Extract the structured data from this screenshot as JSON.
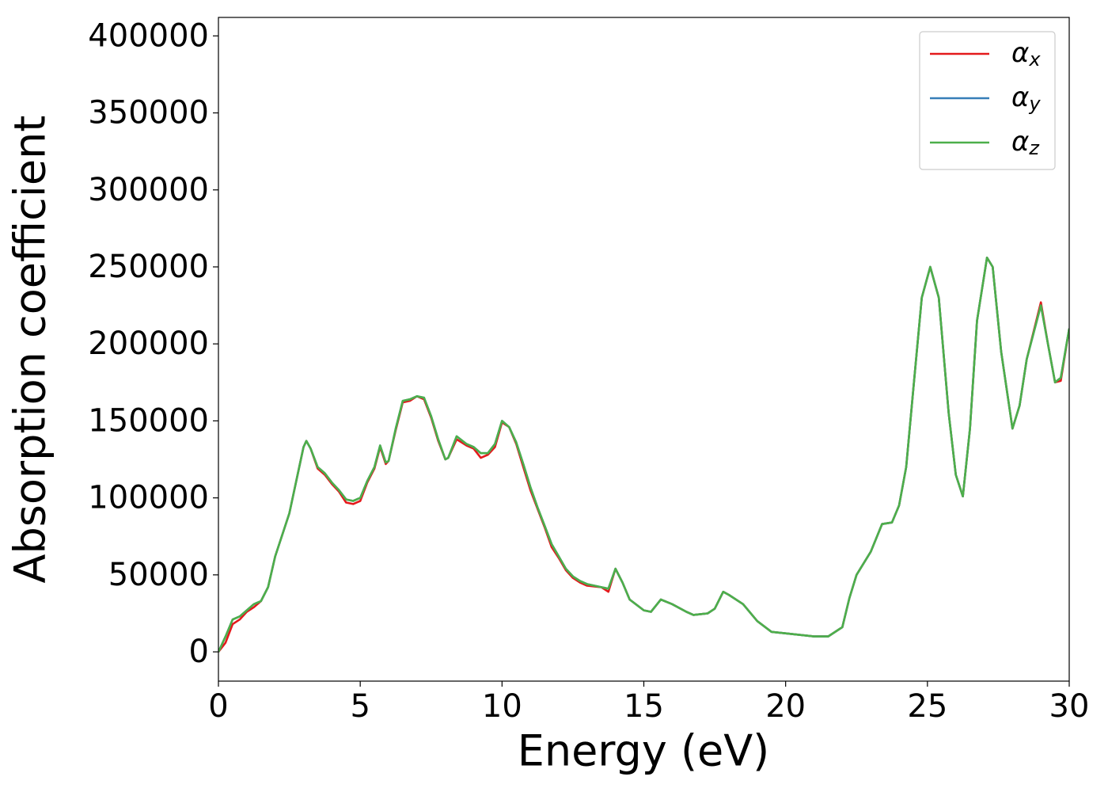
{
  "chart_data": {
    "type": "line",
    "xlabel": "Energy (eV)",
    "ylabel": "Absorption coefficient",
    "x": [
      0,
      0.25,
      0.5,
      0.75,
      1.0,
      1.25,
      1.5,
      1.75,
      2.0,
      2.5,
      3.0,
      3.1,
      3.25,
      3.5,
      3.75,
      4.0,
      4.25,
      4.5,
      4.75,
      5.0,
      5.25,
      5.5,
      5.7,
      5.9,
      6.0,
      6.25,
      6.5,
      6.75,
      7.0,
      7.25,
      7.5,
      7.75,
      8.0,
      8.1,
      8.4,
      8.75,
      9.0,
      9.25,
      9.5,
      9.75,
      10.0,
      10.25,
      10.5,
      10.75,
      11.0,
      11.25,
      11.5,
      11.75,
      12.0,
      12.25,
      12.5,
      12.75,
      13.0,
      13.5,
      13.75,
      14.0,
      14.25,
      14.5,
      15.0,
      15.25,
      15.6,
      16.0,
      16.5,
      16.75,
      17.25,
      17.5,
      17.8,
      18.0,
      18.5,
      19.0,
      19.5,
      20.0,
      21.0,
      21.5,
      22.0,
      22.25,
      22.5,
      23.0,
      23.4,
      23.75,
      24.0,
      24.25,
      24.5,
      24.8,
      25.1,
      25.4,
      25.75,
      26.0,
      26.25,
      26.5,
      26.75,
      27.1,
      27.3,
      27.6,
      28.0,
      28.25,
      28.5,
      29.0,
      29.25,
      29.5,
      29.7,
      30.0
    ],
    "series": [
      {
        "name": "αx",
        "color": "#e41a1c",
        "values": [
          0,
          6000,
          18000,
          21000,
          26000,
          29000,
          33000,
          42000,
          62000,
          90000,
          133000,
          137000,
          132000,
          119000,
          115000,
          109000,
          104000,
          97000,
          96000,
          98000,
          110000,
          119000,
          133000,
          122000,
          124000,
          144000,
          162000,
          163000,
          166000,
          164000,
          152000,
          137000,
          125000,
          126000,
          138000,
          134000,
          132000,
          126000,
          128000,
          133000,
          149000,
          146000,
          135000,
          120000,
          105000,
          93000,
          81000,
          68000,
          61000,
          53000,
          48000,
          45000,
          43000,
          42000,
          39000,
          54000,
          45000,
          34000,
          27000,
          26000,
          34000,
          31000,
          26000,
          24000,
          25000,
          28000,
          39000,
          37000,
          31000,
          20000,
          13000,
          12000,
          10000,
          10000,
          16000,
          35000,
          50000,
          65000,
          83000,
          84000,
          95000,
          120000,
          170000,
          230000,
          250000,
          230000,
          155000,
          115000,
          101000,
          145000,
          215000,
          256000,
          250000,
          195000,
          145000,
          160000,
          190000,
          227000,
          200000,
          175000,
          176000,
          210000
        ]
      },
      {
        "name": "αy",
        "color": "#377eb8",
        "values": [
          0,
          10000,
          21000,
          23000,
          27000,
          31000,
          33000,
          42000,
          62000,
          90000,
          133000,
          137000,
          132000,
          120000,
          116000,
          110000,
          105000,
          99000,
          98000,
          100000,
          111000,
          120000,
          134000,
          123000,
          124000,
          145000,
          163000,
          164000,
          166000,
          165000,
          153000,
          138000,
          125000,
          126000,
          140000,
          135000,
          133000,
          129000,
          129000,
          135000,
          150000,
          146000,
          136000,
          122000,
          107000,
          94000,
          82000,
          70000,
          62000,
          54000,
          49000,
          46000,
          44000,
          42000,
          41000,
          54000,
          45000,
          34000,
          27000,
          26000,
          34000,
          31000,
          26000,
          24000,
          25000,
          28000,
          39000,
          37000,
          31000,
          20000,
          13000,
          12000,
          10000,
          10000,
          16000,
          35000,
          50000,
          65000,
          83000,
          84000,
          95000,
          120000,
          170000,
          230000,
          250000,
          230000,
          155000,
          115000,
          101000,
          145000,
          215000,
          256000,
          250000,
          195000,
          145000,
          160000,
          190000,
          225000,
          200000,
          175000,
          178000,
          210000
        ]
      },
      {
        "name": "αz",
        "color": "#4daf4a",
        "values": [
          0,
          10000,
          21000,
          23000,
          27000,
          31000,
          33000,
          42000,
          62000,
          90000,
          133000,
          137000,
          132000,
          120000,
          116000,
          110000,
          105000,
          99000,
          98000,
          100000,
          111000,
          120000,
          134000,
          123000,
          124000,
          145000,
          163000,
          164000,
          166000,
          165000,
          153000,
          138000,
          125000,
          126000,
          140000,
          135000,
          133000,
          129000,
          129000,
          135000,
          150000,
          146000,
          136000,
          122000,
          107000,
          94000,
          82000,
          70000,
          62000,
          54000,
          49000,
          46000,
          44000,
          42000,
          41000,
          54000,
          45000,
          34000,
          27000,
          26000,
          34000,
          31000,
          26000,
          24000,
          25000,
          28000,
          39000,
          37000,
          31000,
          20000,
          13000,
          12000,
          10000,
          10000,
          16000,
          35000,
          50000,
          65000,
          83000,
          84000,
          95000,
          120000,
          170000,
          230000,
          250000,
          230000,
          155000,
          115000,
          101000,
          145000,
          215000,
          256000,
          250000,
          195000,
          145000,
          160000,
          190000,
          225000,
          200000,
          175000,
          178000,
          210000
        ]
      }
    ],
    "xlim": [
      0,
      30
    ],
    "xticks": [
      0,
      5,
      10,
      15,
      20,
      25,
      30
    ],
    "ylim": [
      -19000,
      412000
    ],
    "yticks": [
      0,
      50000,
      100000,
      150000,
      200000,
      250000,
      300000,
      350000,
      400000
    ],
    "grid": false,
    "legend": "upper right"
  }
}
